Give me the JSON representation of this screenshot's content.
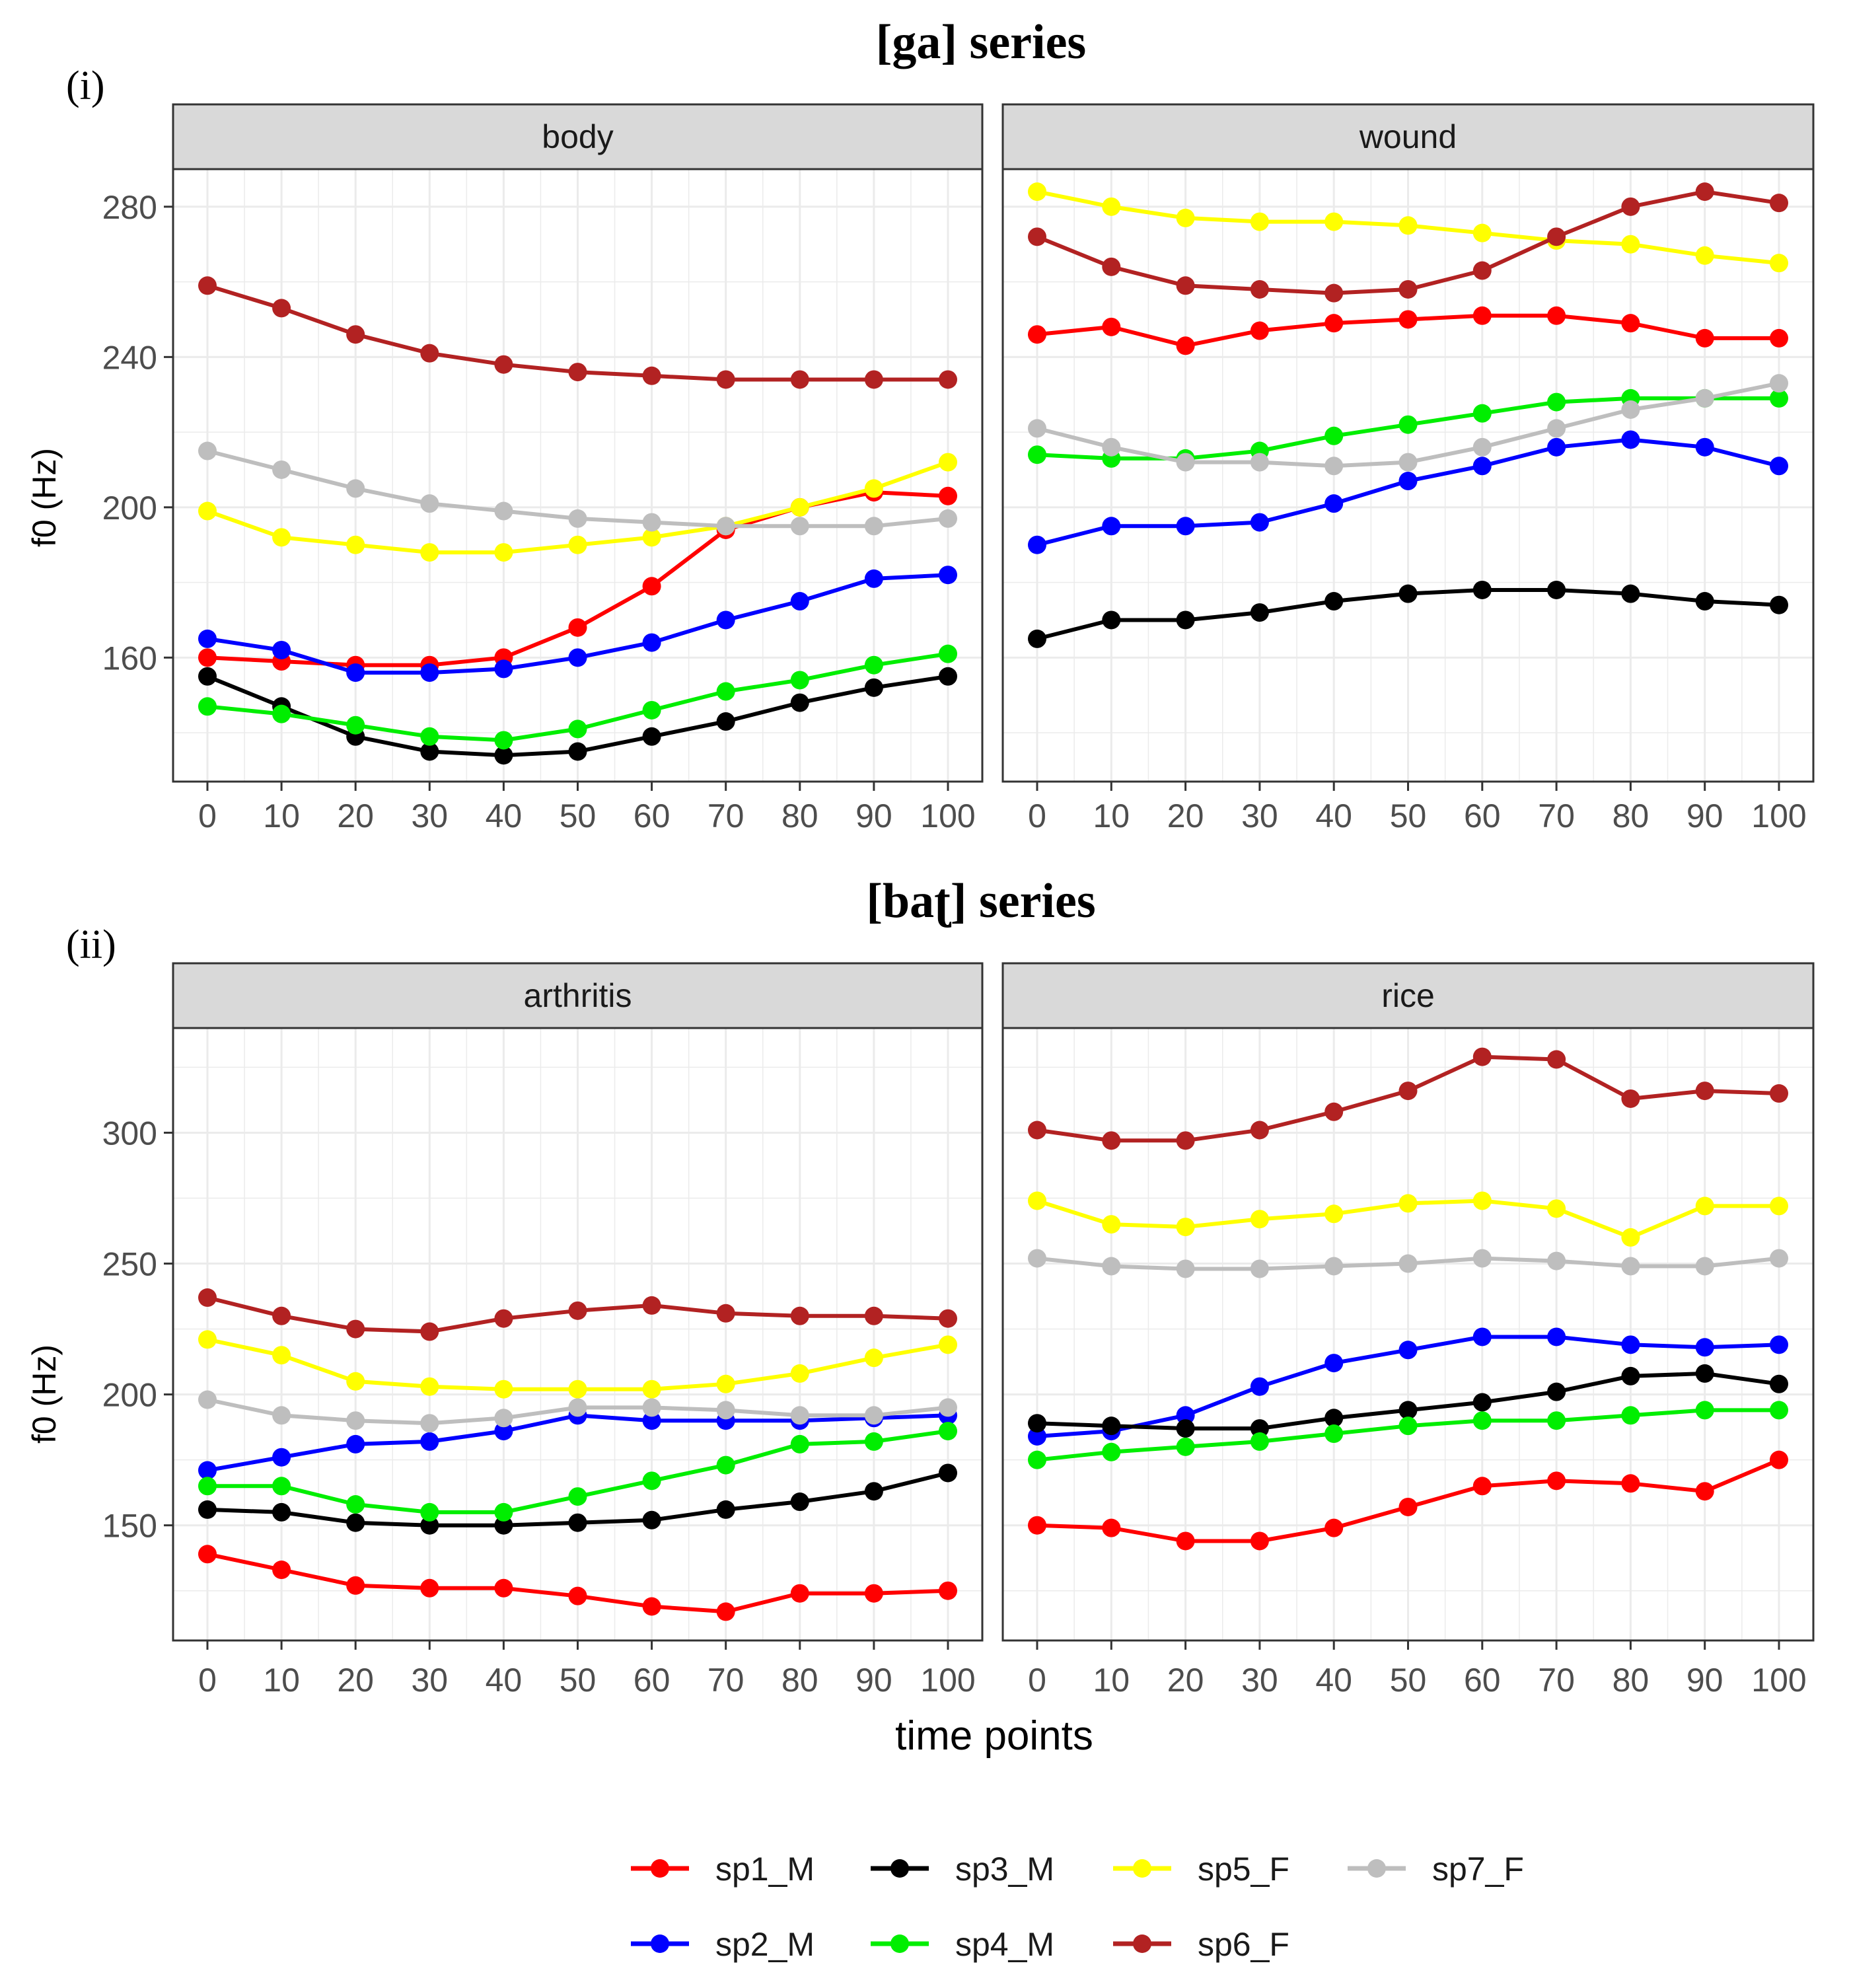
{
  "figure": {
    "section_i_label": "(i)",
    "section_i_title": "[ga] series",
    "section_ii_label": "(ii)",
    "section_ii_title": "[baʈ] series",
    "xlabel": "time points"
  },
  "colors": {
    "sp1_M": "#ff0000",
    "sp2_M": "#0000ff",
    "sp3_M": "#000000",
    "sp4_M": "#00ee00",
    "sp5_F": "#ffff00",
    "sp6_F": "#b22222",
    "sp7_F": "#bebebe",
    "strip_bg": "#d9d9d9",
    "grid": "#ebebeb",
    "axis_text": "#4d4d4d"
  },
  "legend": [
    {
      "key": "sp1_M",
      "label": "sp1_M"
    },
    {
      "key": "sp3_M",
      "label": "sp3_M"
    },
    {
      "key": "sp5_F",
      "label": "sp5_F"
    },
    {
      "key": "sp7_F",
      "label": "sp7_F"
    },
    {
      "key": "sp2_M",
      "label": "sp2_M"
    },
    {
      "key": "sp4_M",
      "label": "sp4_M"
    },
    {
      "key": "sp6_F",
      "label": "sp6_F"
    }
  ],
  "chart_data": [
    {
      "type": "line",
      "panel": "body",
      "section": "(i) [ga] series",
      "xlabel": "time points",
      "ylabel": "f0 (Hz)",
      "x": [
        0,
        10,
        20,
        30,
        40,
        50,
        60,
        70,
        80,
        90,
        100
      ],
      "ylim": [
        127,
        290
      ],
      "yticks": [
        160,
        200,
        240,
        280
      ],
      "series": [
        {
          "name": "sp1_M",
          "values": [
            160,
            159,
            158,
            158,
            160,
            168,
            179,
            194,
            200,
            204,
            203
          ]
        },
        {
          "name": "sp2_M",
          "values": [
            165,
            162,
            156,
            156,
            157,
            160,
            164,
            170,
            175,
            181,
            182
          ]
        },
        {
          "name": "sp3_M",
          "values": [
            155,
            147,
            139,
            135,
            134,
            135,
            139,
            143,
            148,
            152,
            155
          ]
        },
        {
          "name": "sp4_M",
          "values": [
            147,
            145,
            142,
            139,
            138,
            141,
            146,
            151,
            154,
            158,
            161
          ]
        },
        {
          "name": "sp5_F",
          "values": [
            199,
            192,
            190,
            188,
            188,
            190,
            192,
            195,
            200,
            205,
            212
          ]
        },
        {
          "name": "sp6_F",
          "values": [
            259,
            253,
            246,
            241,
            238,
            236,
            235,
            234,
            234,
            234,
            234
          ]
        },
        {
          "name": "sp7_F",
          "values": [
            215,
            210,
            205,
            201,
            199,
            197,
            196,
            195,
            195,
            195,
            197
          ]
        }
      ]
    },
    {
      "type": "line",
      "panel": "wound",
      "section": "(i) [ga] series",
      "xlabel": "time points",
      "ylabel": "f0 (Hz)",
      "x": [
        0,
        10,
        20,
        30,
        40,
        50,
        60,
        70,
        80,
        90,
        100
      ],
      "ylim": [
        127,
        290
      ],
      "yticks": [
        160,
        200,
        240,
        280
      ],
      "series": [
        {
          "name": "sp1_M",
          "values": [
            246,
            248,
            243,
            247,
            249,
            250,
            251,
            251,
            249,
            245,
            245
          ]
        },
        {
          "name": "sp2_M",
          "values": [
            190,
            195,
            195,
            196,
            201,
            207,
            211,
            216,
            218,
            216,
            211
          ]
        },
        {
          "name": "sp3_M",
          "values": [
            165,
            170,
            170,
            172,
            175,
            177,
            178,
            178,
            177,
            175,
            174
          ]
        },
        {
          "name": "sp4_M",
          "values": [
            214,
            213,
            213,
            215,
            219,
            222,
            225,
            228,
            229,
            229,
            229
          ]
        },
        {
          "name": "sp5_F",
          "values": [
            284,
            280,
            277,
            276,
            276,
            275,
            273,
            271,
            270,
            267,
            265
          ]
        },
        {
          "name": "sp6_F",
          "values": [
            272,
            264,
            259,
            258,
            257,
            258,
            263,
            272,
            280,
            284,
            281
          ]
        },
        {
          "name": "sp7_F",
          "values": [
            221,
            216,
            212,
            212,
            211,
            212,
            216,
            221,
            226,
            229,
            233
          ]
        }
      ]
    },
    {
      "type": "line",
      "panel": "arthritis",
      "section": "(ii) [baʈ] series",
      "xlabel": "time points",
      "ylabel": "f0 (Hz)",
      "x": [
        0,
        10,
        20,
        30,
        40,
        50,
        60,
        70,
        80,
        90,
        100
      ],
      "ylim": [
        106,
        340
      ],
      "yticks": [
        150,
        200,
        250,
        300
      ],
      "series": [
        {
          "name": "sp1_M",
          "values": [
            139,
            133,
            127,
            126,
            126,
            123,
            119,
            117,
            124,
            124,
            125
          ]
        },
        {
          "name": "sp2_M",
          "values": [
            171,
            176,
            181,
            182,
            186,
            192,
            190,
            190,
            190,
            191,
            192
          ]
        },
        {
          "name": "sp3_M",
          "values": [
            156,
            155,
            151,
            150,
            150,
            151,
            152,
            156,
            159,
            163,
            170
          ]
        },
        {
          "name": "sp4_M",
          "values": [
            165,
            165,
            158,
            155,
            155,
            161,
            167,
            173,
            181,
            182,
            186
          ]
        },
        {
          "name": "sp5_F",
          "values": [
            221,
            215,
            205,
            203,
            202,
            202,
            202,
            204,
            208,
            214,
            219
          ]
        },
        {
          "name": "sp6_F",
          "values": [
            237,
            230,
            225,
            224,
            229,
            232,
            234,
            231,
            230,
            230,
            229
          ]
        },
        {
          "name": "sp7_F",
          "values": [
            198,
            192,
            190,
            189,
            191,
            195,
            195,
            194,
            192,
            192,
            195
          ]
        }
      ]
    },
    {
      "type": "line",
      "panel": "rice",
      "section": "(ii) [baʈ] series",
      "xlabel": "time points",
      "ylabel": "f0 (Hz)",
      "x": [
        0,
        10,
        20,
        30,
        40,
        50,
        60,
        70,
        80,
        90,
        100
      ],
      "ylim": [
        106,
        340
      ],
      "yticks": [
        150,
        200,
        250,
        300
      ],
      "series": [
        {
          "name": "sp1_M",
          "values": [
            150,
            149,
            144,
            144,
            149,
            157,
            165,
            167,
            166,
            163,
            175
          ]
        },
        {
          "name": "sp2_M",
          "values": [
            184,
            186,
            192,
            203,
            212,
            217,
            222,
            222,
            219,
            218,
            219
          ]
        },
        {
          "name": "sp3_M",
          "values": [
            189,
            188,
            187,
            187,
            191,
            194,
            197,
            201,
            207,
            208,
            204
          ]
        },
        {
          "name": "sp4_M",
          "values": [
            175,
            178,
            180,
            182,
            185,
            188,
            190,
            190,
            192,
            194,
            194
          ]
        },
        {
          "name": "sp5_F",
          "values": [
            274,
            265,
            264,
            267,
            269,
            273,
            274,
            271,
            260,
            272,
            272
          ]
        },
        {
          "name": "sp6_F",
          "values": [
            301,
            297,
            297,
            301,
            308,
            316,
            329,
            328,
            313,
            316,
            315
          ]
        },
        {
          "name": "sp7_F",
          "values": [
            252,
            249,
            248,
            248,
            249,
            250,
            252,
            251,
            249,
            249,
            252
          ]
        }
      ]
    }
  ]
}
